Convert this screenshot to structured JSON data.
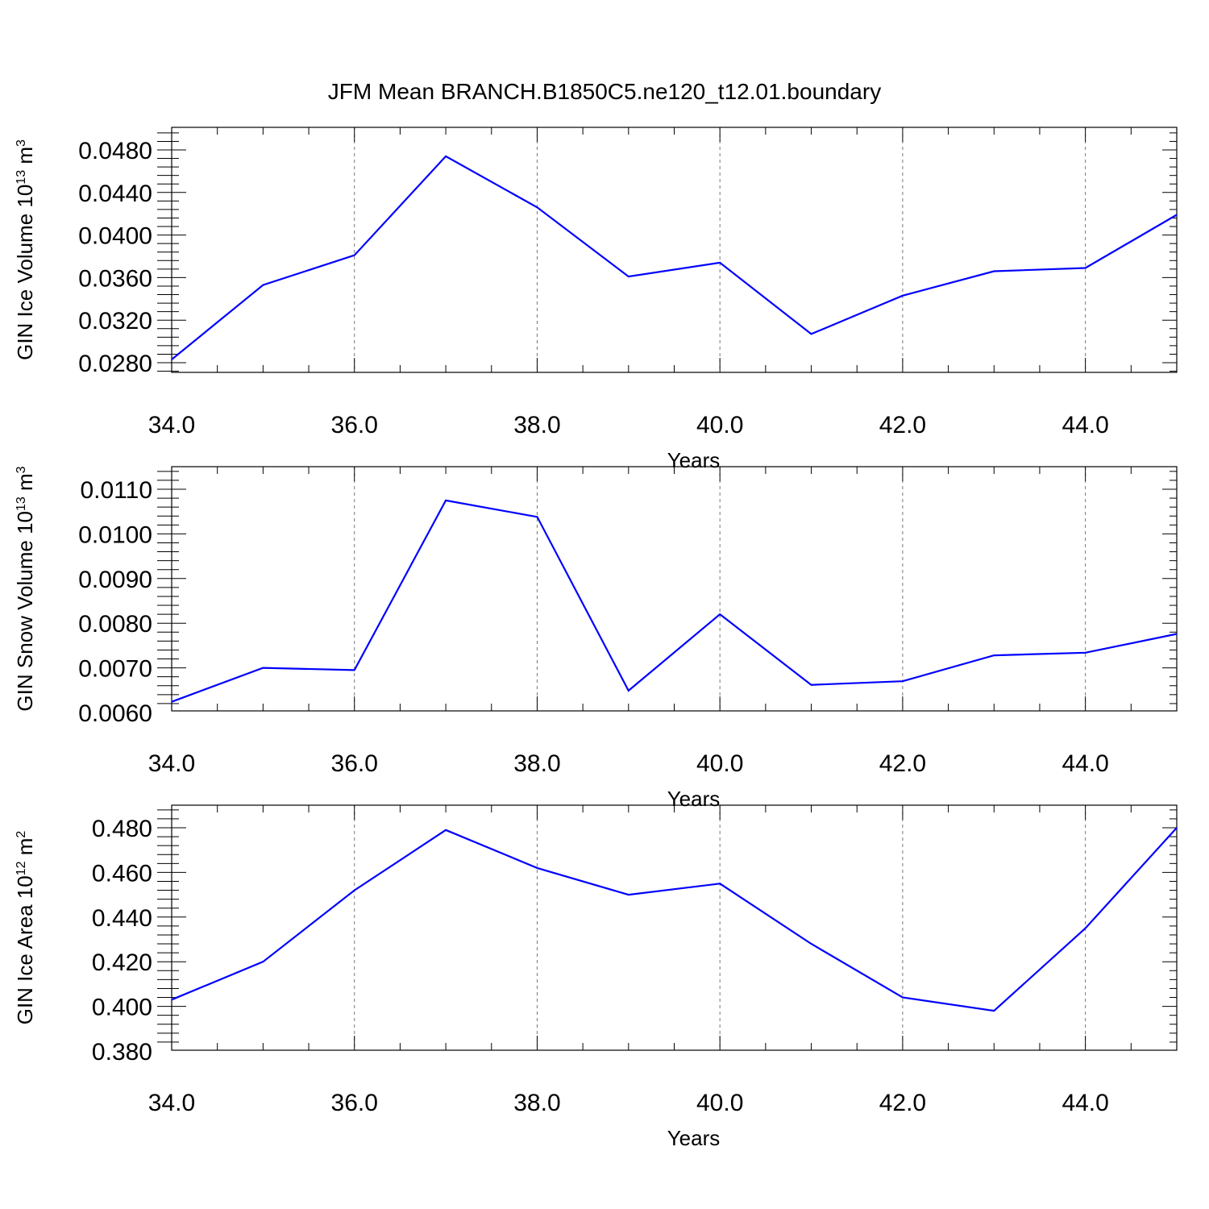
{
  "title": "JFM Mean BRANCH.B1850C5.ne120_t12.01.boundary",
  "colors": {
    "line": "#0000ff",
    "grid": "#777777",
    "axis": "#000000"
  },
  "chart_data": [
    {
      "type": "line",
      "xlabel": "Years",
      "ylabel": {
        "prefix": "GIN Ice Volume 10",
        "exp": "13",
        "unit": " m",
        "unit_exp": "3"
      },
      "xlim": [
        34,
        45
      ],
      "ylim": [
        0.027,
        0.0481
      ],
      "x_ticks": [
        "34.0",
        "36.0",
        "38.0",
        "40.0",
        "42.0",
        "44.0"
      ],
      "y_ticks": [
        "0.0280",
        "0.0320",
        "0.0360",
        "0.0400",
        "0.0440",
        "0.0480"
      ],
      "grid": "vertical-dashed",
      "x": [
        34,
        35,
        36,
        37,
        38,
        39,
        40,
        41,
        42,
        43,
        44,
        45
      ],
      "series": [
        {
          "values": [
            0.0283,
            0.0353,
            0.0381,
            0.0474,
            0.0426,
            0.0361,
            0.0374,
            0.0307,
            0.0343,
            0.0366,
            0.0369,
            0.0419
          ]
        }
      ]
    },
    {
      "type": "line",
      "xlabel": "Years",
      "ylabel": {
        "prefix": "GIN Snow Volume 10",
        "exp": "13",
        "unit": " m",
        "unit_exp": "3"
      },
      "xlim": [
        34,
        45
      ],
      "ylim": [
        0.006,
        0.0111
      ],
      "x_ticks": [
        "34.0",
        "36.0",
        "38.0",
        "40.0",
        "42.0",
        "44.0"
      ],
      "y_ticks": [
        "0.0060",
        "0.0070",
        "0.0080",
        "0.0090",
        "0.0100",
        "0.0110"
      ],
      "grid": "vertical-dashed",
      "x": [
        34,
        35,
        36,
        37,
        38,
        39,
        40,
        41,
        42,
        43,
        44,
        45
      ],
      "series": [
        {
          "values": [
            0.00624,
            0.007,
            0.00695,
            0.01075,
            0.01038,
            0.00649,
            0.0082,
            0.00662,
            0.0067,
            0.00728,
            0.00734,
            0.00776
          ]
        }
      ]
    },
    {
      "type": "line",
      "xlabel": "Years",
      "ylabel": {
        "prefix": "GIN Ice Area 10",
        "exp": "12",
        "unit": " m",
        "unit_exp": "2"
      },
      "xlim": [
        34,
        45
      ],
      "ylim": [
        0.38,
        0.48
      ],
      "x_ticks": [
        "34.0",
        "36.0",
        "38.0",
        "40.0",
        "42.0",
        "44.0"
      ],
      "y_ticks": [
        "0.380",
        "0.400",
        "0.420",
        "0.440",
        "0.460",
        "0.480"
      ],
      "grid": "vertical-dashed",
      "x": [
        34,
        35,
        36,
        37,
        38,
        39,
        40,
        41,
        42,
        43,
        44,
        45
      ],
      "series": [
        {
          "values": [
            0.403,
            0.42,
            0.452,
            0.479,
            0.462,
            0.45,
            0.455,
            0.428,
            0.404,
            0.398,
            0.435,
            0.48
          ]
        }
      ]
    }
  ]
}
